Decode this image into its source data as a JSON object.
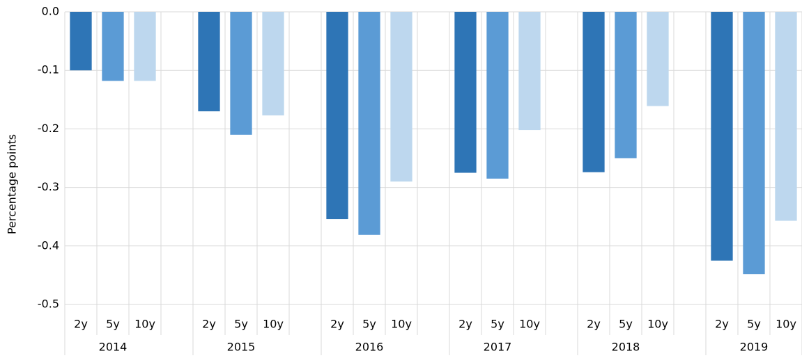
{
  "chart_data": {
    "type": "bar",
    "y_label": "Percentage points",
    "categories": [
      "2014",
      "2015",
      "2016",
      "2017",
      "2018",
      "2019"
    ],
    "series": [
      {
        "name": "2y",
        "color": "#2e75b6",
        "values": [
          -0.1,
          -0.17,
          -0.354,
          -0.275,
          -0.274,
          -0.425
        ]
      },
      {
        "name": "5y",
        "color": "#5b9bd5",
        "values": [
          -0.118,
          -0.21,
          -0.381,
          -0.285,
          -0.25,
          -0.448
        ]
      },
      {
        "name": "10y",
        "color": "#bdd7ee",
        "values": [
          -0.118,
          -0.177,
          -0.29,
          -0.202,
          -0.161,
          -0.357
        ]
      }
    ],
    "ylim": [
      -0.5,
      0
    ],
    "yticks": [
      {
        "value": 0,
        "label": "0.0"
      },
      -0.1,
      -0.2,
      -0.3,
      -0.4,
      -0.5
    ],
    "grid": true
  }
}
